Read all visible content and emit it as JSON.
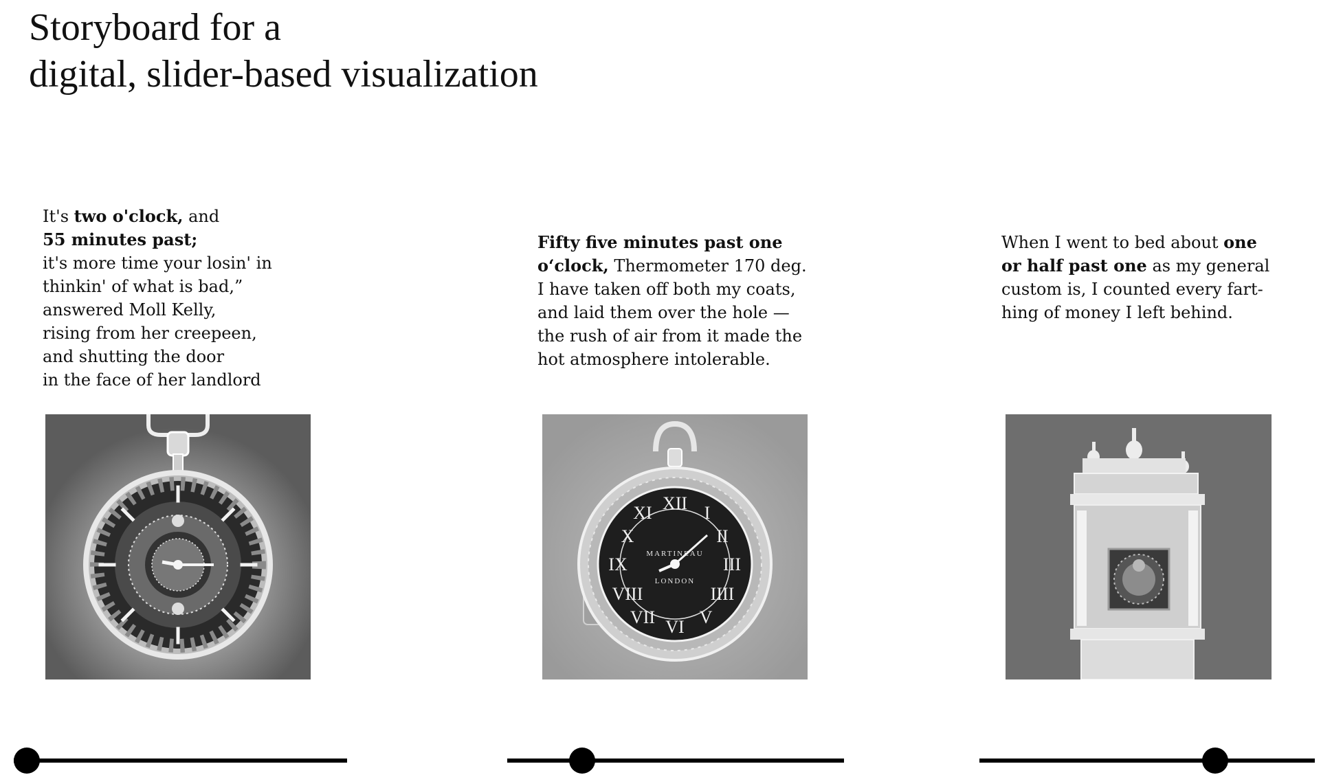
{
  "title": {
    "line1": "Storyboard for a",
    "line2": "digital, slider-based visualization"
  },
  "panels": [
    {
      "caption": [
        [
          {
            "t": "It's "
          },
          {
            "t": "two o'clock,",
            "b": true
          },
          {
            "t": " and"
          }
        ],
        [
          {
            "t": "55  minutes past;",
            "b": true
          }
        ],
        [
          {
            "t": "it's more time your losin' in"
          }
        ],
        [
          {
            "t": "thinkin' of what is bad,”"
          }
        ],
        [
          {
            "t": "answered Moll Kelly,"
          }
        ],
        [
          {
            "t": "rising from her creepeen,"
          }
        ],
        [
          {
            "t": "and shutting the door"
          }
        ],
        [
          {
            "t": "in the face of her landlord"
          }
        ]
      ],
      "image": "inverted-pocket-watch-roman-dial",
      "slider_position": 0.0
    },
    {
      "caption": [
        [
          {
            "t": "Fifty five minutes past one",
            "b": true
          }
        ],
        [
          {
            "t": "o‘clock,",
            "b": true
          },
          {
            "t": " Thermometer 170 deg."
          }
        ],
        [
          {
            "t": "I have taken off both my coats,"
          }
        ],
        [
          {
            "t": "and laid them over the hole —"
          }
        ],
        [
          {
            "t": "the rush of air from it made the"
          }
        ],
        [
          {
            "t": "hot atmosphere intolerable."
          }
        ]
      ],
      "image": "inverted-pocket-watch-martineau-london",
      "dial_text": {
        "maker": "MARTINEAU",
        "place": "LONDON"
      },
      "slider_position": 0.2
    },
    {
      "caption": [
        [
          {
            "t": "When I went to bed about "
          },
          {
            "t": "one",
            "b": true
          }
        ],
        [
          {
            "t": "or half past one",
            "b": true
          },
          {
            "t": " as my general"
          }
        ],
        [
          {
            "t": "custom is, I counted every fart-"
          }
        ],
        [
          {
            "t": "hing of money I left behind."
          }
        ]
      ],
      "image": "inverted-longcase-clock",
      "slider_position": 0.72
    }
  ]
}
